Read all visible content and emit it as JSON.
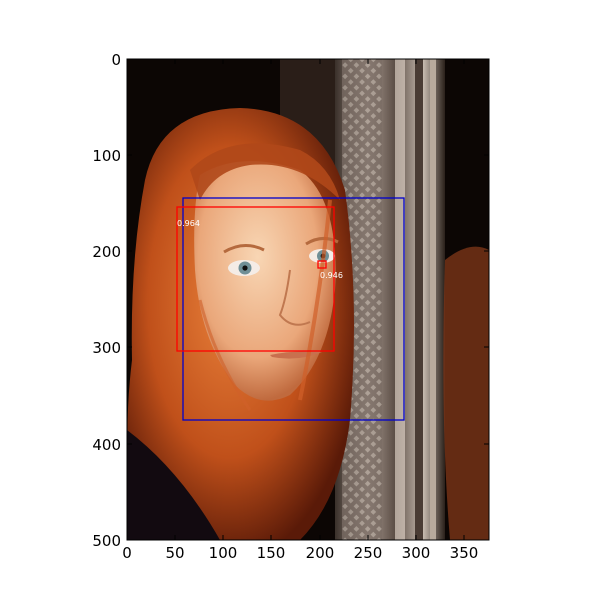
{
  "image_description": "Photograph of a young woman with long red hair looking at the camera, standing beside an ornate metallic mirror frame; bounding boxes drawn over the face and an eye.",
  "axes": {
    "x_ticks": [
      "0",
      "50",
      "100",
      "150",
      "200",
      "250",
      "300",
      "350"
    ],
    "y_ticks": [
      "0",
      "100",
      "200",
      "300",
      "400",
      "500"
    ]
  },
  "detections": [
    {
      "label": "0.964",
      "color": "#ff0000"
    },
    {
      "label": "0.946",
      "color": "#ff0000"
    },
    {
      "label": "",
      "color": "#0000cc"
    }
  ],
  "colors": {
    "hair": "#c0501a",
    "skin": "#f0b48c",
    "background": "#0c0604",
    "frame": "#8a7a70"
  }
}
